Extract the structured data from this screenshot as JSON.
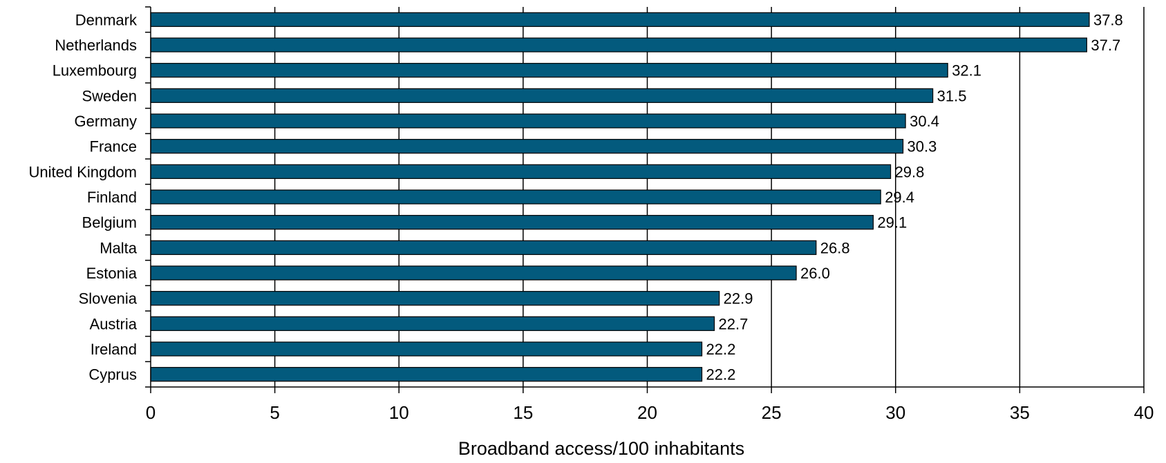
{
  "chart_data": {
    "type": "bar",
    "orientation": "horizontal",
    "categories": [
      "Denmark",
      "Netherlands",
      "Luxembourg",
      "Sweden",
      "Germany",
      "France",
      "United Kingdom",
      "Finland",
      "Belgium",
      "Malta",
      "Estonia",
      "Slovenia",
      "Austria",
      "Ireland",
      "Cyprus"
    ],
    "values": [
      37.8,
      37.7,
      32.1,
      31.5,
      30.4,
      30.3,
      29.8,
      29.4,
      29.1,
      26.8,
      26.0,
      22.9,
      22.7,
      22.2,
      22.2
    ],
    "value_labels": [
      "37.8",
      "37.7",
      "32.1",
      "31.5",
      "30.4",
      "30.3",
      "29.8",
      "29.4",
      "29.1",
      "26.8",
      "26.0",
      "22.9",
      "22.7",
      "22.2",
      "22.2"
    ],
    "title": "",
    "xlabel": "Broadband access/100 inhabitants",
    "ylabel": "",
    "xlim": [
      0,
      40
    ],
    "xticks": [
      0,
      5,
      10,
      15,
      20,
      25,
      30,
      35,
      40
    ],
    "grid": "vertical",
    "legend": "none",
    "colors": {
      "bar": "#035a7d",
      "bar_edge": "#000000",
      "grid": "#000000",
      "axis": "#000000"
    }
  }
}
